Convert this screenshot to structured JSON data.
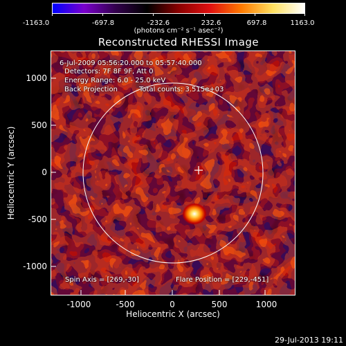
{
  "colorbar": {
    "ticks": [
      "-1163.0",
      "-697.8",
      "-232.6",
      "232.6",
      "697.8",
      "1163.0"
    ],
    "units": "(photons cm⁻² s⁻¹ asec⁻²)",
    "colors": [
      "#0000ff",
      "#7a00cc",
      "#33004d",
      "#000000",
      "#8a0000",
      "#e01010",
      "#ff7a00",
      "#ffe060",
      "#ffffff"
    ]
  },
  "title": "Reconstructed RHESSI Image",
  "info": {
    "line1": "6-Jul-2009 05:56:20.000 to 05:57:40.000",
    "line2": "Detectors: 7F 8F 9F, Att 0",
    "line3": "Energy Range: 6.0 - 25.0 keV",
    "line4a": "Back Projection",
    "line4b": "Total counts: 3.515e+03",
    "spin_axis": "Spin Axis = [269,-30]",
    "flare_position": "Flare Position = [229,-451]"
  },
  "axes": {
    "ylabel": "Heliocentric Y (arcsec)",
    "xlabel": "Heliocentric X (arcsec)",
    "xticks": [
      "-1000",
      "-500",
      "0",
      "500",
      "1000"
    ],
    "yticks": [
      "1000",
      "500",
      "0",
      "-500",
      "-1000"
    ],
    "xrange": [
      -1280,
      1280
    ],
    "yrange": [
      -1280,
      1280
    ]
  },
  "footer": {
    "date": "29-Jul-2013 19:11"
  },
  "markers": {
    "limb_circle_color": "#ffffff",
    "crosshair_color": "#ffffff"
  }
}
